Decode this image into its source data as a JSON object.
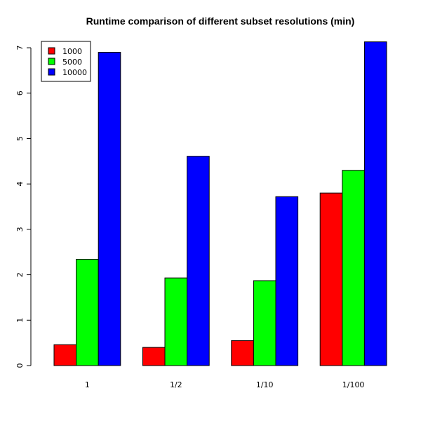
{
  "chart_data": {
    "type": "bar",
    "title": "Runtime comparison of different subset resolutions (min)",
    "categories": [
      "1",
      "1/2",
      "1/10",
      "1/100"
    ],
    "series": [
      {
        "name": "1000",
        "color": "#ff0000",
        "values": [
          0.46,
          0.4,
          0.55,
          3.8
        ]
      },
      {
        "name": "5000",
        "color": "#00ff00",
        "values": [
          2.34,
          1.93,
          1.87,
          4.3
        ]
      },
      {
        "name": "10000",
        "color": "#0000ff",
        "values": [
          6.9,
          4.61,
          3.72,
          7.13
        ]
      }
    ],
    "yticks": [
      0,
      1,
      2,
      3,
      4,
      5,
      6,
      7
    ],
    "ylim": [
      0,
      7.14
    ],
    "xlabel": "",
    "ylabel": "",
    "legend_position": "top-left",
    "grid": false
  }
}
